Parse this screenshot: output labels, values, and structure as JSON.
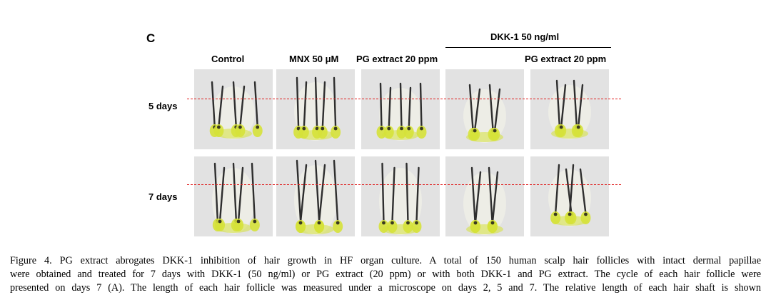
{
  "figure": {
    "panel_letter": "C",
    "group_label": "DKK-1 50 ng/ml",
    "columns": [
      "Control",
      "MNX 50 μM",
      "PG extract 20 ppm",
      "",
      "PG extract 20 ppm"
    ],
    "rows": [
      "5 days",
      "7 days"
    ],
    "reference_line_color": "#e02020",
    "follicle_colors": {
      "background": "#e2e2e2",
      "bulb": "#d6e23a",
      "shaft": "#2e2e2e",
      "sheath": "#f2f2e8"
    }
  },
  "caption": {
    "lines": [
      "Figure 4. PG extract abrogates DKK-1 inhibition of hair growth in HF organ culture. A total of 150 human scalp hair follicles with intact dermal papillae",
      "were obtained and treated for 7 days with DKK-1 (50 ng/ml) or PG extract (20 ppm) or with both DKK-1 and PG extract. The cycle of each hair follicle were",
      "presented on days 7 (A). The length of each hair follicle was measured under a microscope on days 2, 5 and 7. The relative length of each hair shaft is shown"
    ]
  }
}
